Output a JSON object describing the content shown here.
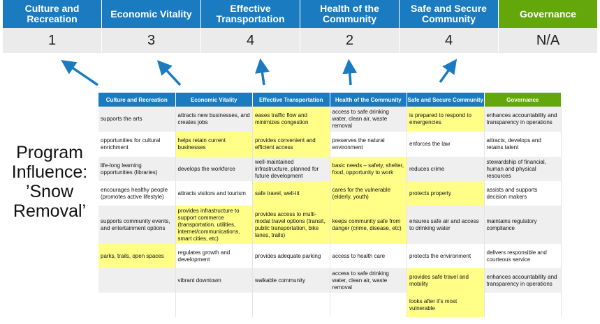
{
  "top": {
    "headers": [
      "Culture and Recreation",
      "Economic Vitality",
      "Effective Transportation",
      "Health of the Community",
      "Safe and Secure Community",
      "Governance"
    ],
    "scores": [
      "1",
      "3",
      "4",
      "2",
      "4",
      "N/A"
    ]
  },
  "label": {
    "line1": "Program",
    "line2": "Influence:",
    "line3": "’Snow",
    "line4": "Removal’"
  },
  "colors": {
    "blue": "#1a7bc0",
    "green": "#63a70a",
    "highlight": "#ffff88",
    "row_gray": "#efefef"
  },
  "table": {
    "headers": [
      "Culture and Recreation",
      "Economic Vitality",
      "Effective Transportation",
      "Health of the Community",
      "Safe and Secure Community",
      "Governance"
    ],
    "rows": [
      [
        {
          "t": "supports the arts"
        },
        {
          "t": "attracts new businesses, and creates jobs"
        },
        {
          "t": "eases traffic flow and minimizes congestion",
          "h": true
        },
        {
          "t": "access to safe drinking water, clean air, waste removal"
        },
        {
          "t": "is prepared to respond to emergencies",
          "h": true
        },
        {
          "t": "enhances accountability and transparency in operations"
        }
      ],
      [
        {
          "t": "opportunities for cultural enrichment"
        },
        {
          "t": "helps retain current businesses",
          "h": true
        },
        {
          "t": "provides convenient and efficient access",
          "h": true
        },
        {
          "t": "preserves the natural environment"
        },
        {
          "t": "enforces the law"
        },
        {
          "t": "attracts, develops and retains talent"
        }
      ],
      [
        {
          "t": "life-long learning opportunities (libraries)"
        },
        {
          "t": "develops the workforce"
        },
        {
          "t": "well-maintained infrastructure, planned for future development"
        },
        {
          "t": "basic needs – safety, shelter, food, opportunity to work",
          "h": true
        },
        {
          "t": "reduces crime"
        },
        {
          "t": "stewardship of financial, human and physical resources"
        }
      ],
      [
        {
          "t": "encourages healthy people (promotes active lifestyle)"
        },
        {
          "t": "attracts visitors and tourism"
        },
        {
          "t": "safe travel, well-lit",
          "h": true
        },
        {
          "t": "cares for the vulnerable (elderly, youth)",
          "h": true
        },
        {
          "t": "protects property",
          "h": true
        },
        {
          "t": "assists and supports decision makers"
        }
      ],
      [
        {
          "t": "supports community events, and entertainment options"
        },
        {
          "t": "provides infrastructure to support commerce (transportation, utilities, internet/communications, smart cities, etc)",
          "h": true
        },
        {
          "t": "provides access to multi-modal travel options (transit, public transportation, bike lanes, trails)",
          "h": true
        },
        {
          "t": "keeps community safe from danger (crime, disease, etc)",
          "h": true
        },
        {
          "t": "ensures safe air and access to drinking water"
        },
        {
          "t": "maintains regulatory compliance"
        }
      ],
      [
        {
          "t": "parks, trails, open spaces",
          "h": true
        },
        {
          "t": "regulates growth and development"
        },
        {
          "t": "provides adequate parking"
        },
        {
          "t": "access to health care"
        },
        {
          "t": "protects the environment"
        },
        {
          "t": "delivers responsible and courteous service"
        }
      ],
      [
        {
          "t": ""
        },
        {
          "t": "vibrant downtown"
        },
        {
          "t": "walkable community"
        },
        {
          "t": "access to safe drinking water, clean air, waste removal"
        },
        {
          "t": "provides safe travel and mobility",
          "h": true
        },
        {
          "t": "enhances accountability and transparency in operations"
        }
      ],
      [
        {
          "t": ""
        },
        {
          "t": ""
        },
        {
          "t": ""
        },
        {
          "t": ""
        },
        {
          "t": "looks after it's most vulnerable",
          "h": true
        },
        {
          "t": ""
        }
      ]
    ]
  }
}
